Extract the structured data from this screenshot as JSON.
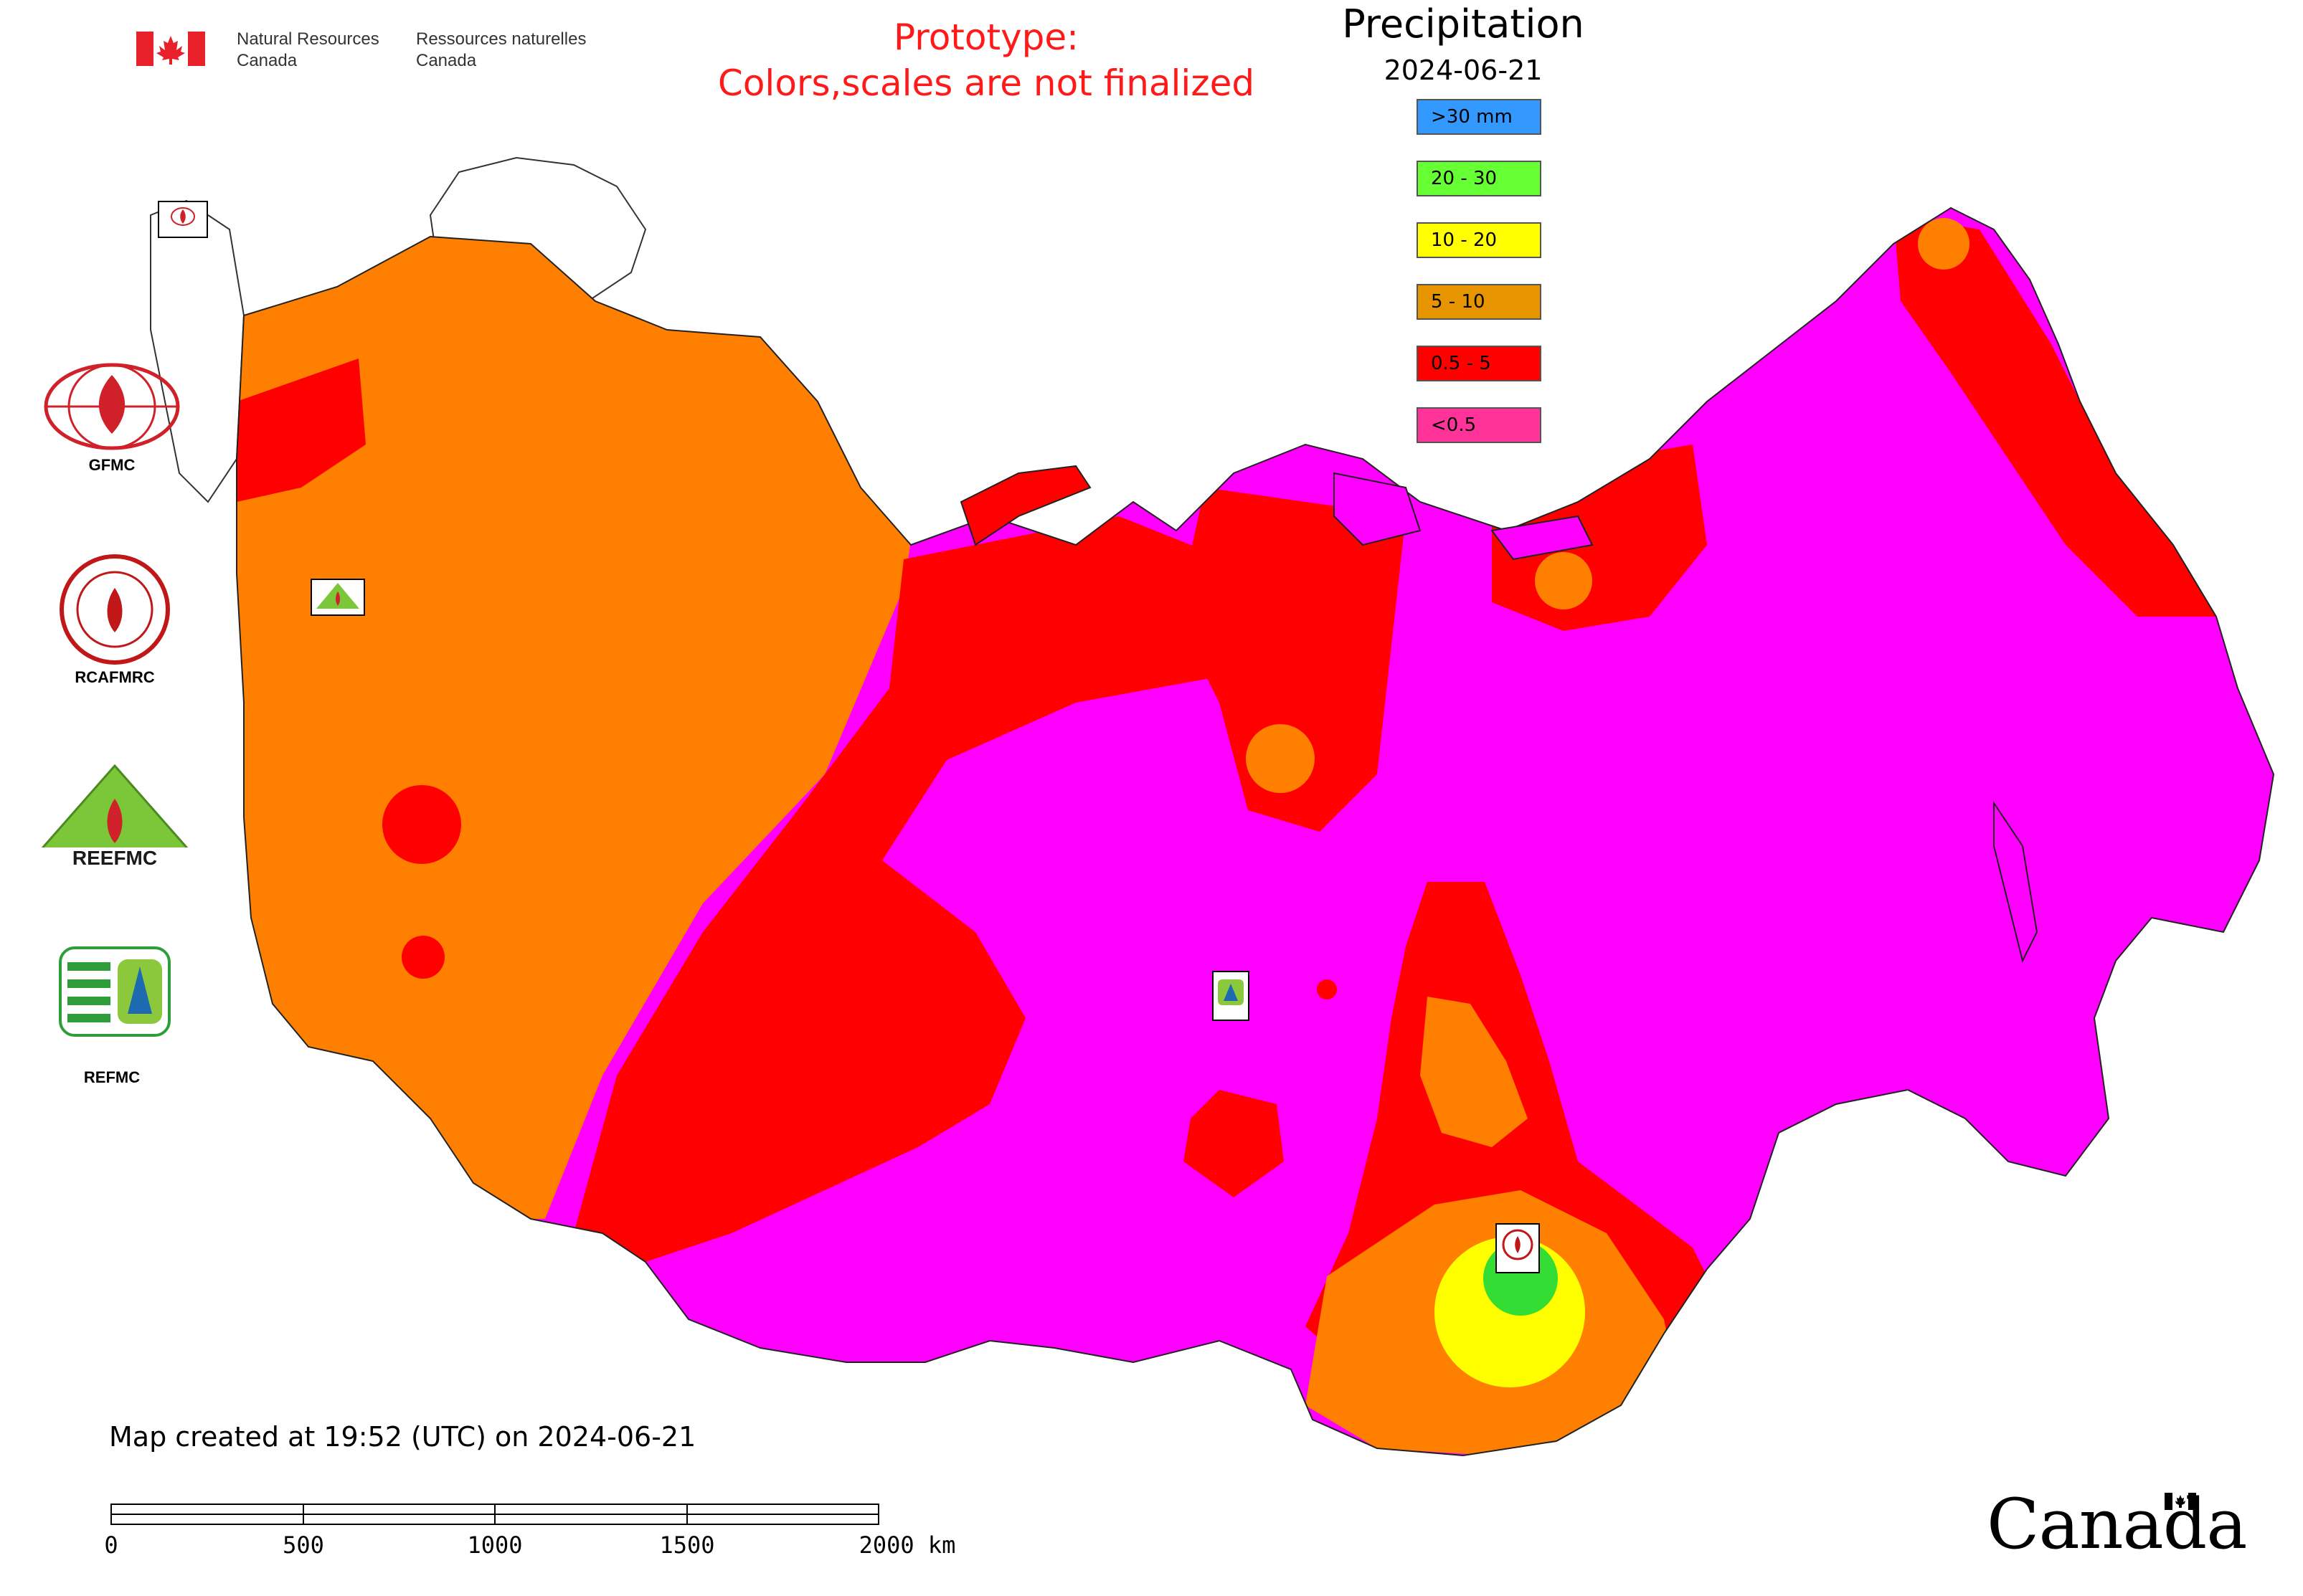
{
  "header": {
    "dept_en": "Natural Resources\nCanada",
    "dept_fr": "Ressources naturelles\nCanada",
    "prototype_line1": "Prototype:",
    "prototype_line2": "Colors,scales are not finalized"
  },
  "legend": {
    "title": "Precipitation",
    "date": "2024-06-21",
    "classes": [
      {
        "label": ">30 mm",
        "color": "#3399ff"
      },
      {
        "label": "20 - 30",
        "color": "#66ff33"
      },
      {
        "label": "10 - 20",
        "color": "#ffff00"
      },
      {
        "label": "5 - 10",
        "color": "#e69500"
      },
      {
        "label": "0.5 - 5",
        "color": "#ff0000"
      },
      {
        "label": "<0.5",
        "color": "#ff3399"
      }
    ]
  },
  "map_colors": {
    "orange": "#ff8000",
    "red": "#ff0000",
    "magenta": "#ff00ff",
    "yellow": "#ffff00",
    "green": "#33dd33"
  },
  "organizations": [
    {
      "name": "GFMC"
    },
    {
      "name": "RCAFMRC"
    },
    {
      "name": "REEFMC"
    },
    {
      "name": "REFMC"
    }
  ],
  "footer": {
    "created": "Map created at 19:52 (UTC) on 2024-06-21",
    "scale_labels": [
      "0",
      "500",
      "1000",
      "1500",
      "2000 km"
    ],
    "wordmark": "Canada"
  }
}
